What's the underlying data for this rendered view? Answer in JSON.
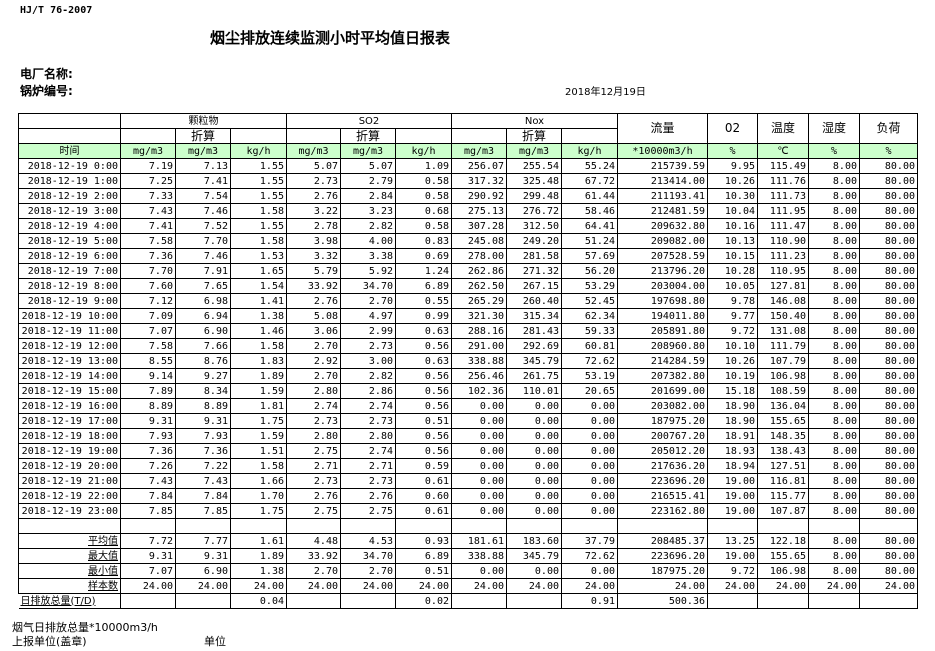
{
  "standard": "HJ/T  76-2007",
  "title": "烟尘排放连续监测小时平均值日报表",
  "plant_label": "电厂名称:",
  "boiler_label": "锅炉编号:",
  "date": "2018年12月19日",
  "header": {
    "groups": [
      "颗粒物",
      "SO2",
      "Nox"
    ],
    "converted": "折算",
    "flow": "流量",
    "o2": "02",
    "temp": "温度",
    "humidity": "湿度",
    "load": "负荷",
    "units": [
      "时间",
      "mg/m3",
      "mg/m3",
      "kg/h",
      "mg/m3",
      "mg/m3",
      "kg/h",
      "mg/m3",
      "mg/m3",
      "kg/h",
      "*10000m3/h",
      "%",
      "℃",
      "%",
      "%"
    ]
  },
  "unit_row_color": "#ccffcc",
  "rows": [
    [
      "2018-12-19 0:00",
      "7.19",
      "7.13",
      "1.55",
      "5.07",
      "5.07",
      "1.09",
      "256.07",
      "255.54",
      "55.24",
      "215739.59",
      "9.95",
      "115.49",
      "8.00",
      "80.00"
    ],
    [
      "2018-12-19 1:00",
      "7.25",
      "7.41",
      "1.55",
      "2.73",
      "2.79",
      "0.58",
      "317.32",
      "325.48",
      "67.72",
      "213414.00",
      "10.26",
      "111.76",
      "8.00",
      "80.00"
    ],
    [
      "2018-12-19 2:00",
      "7.33",
      "7.54",
      "1.55",
      "2.76",
      "2.84",
      "0.58",
      "290.92",
      "299.48",
      "61.44",
      "211193.41",
      "10.30",
      "111.73",
      "8.00",
      "80.00"
    ],
    [
      "2018-12-19 3:00",
      "7.43",
      "7.46",
      "1.58",
      "3.22",
      "3.23",
      "0.68",
      "275.13",
      "276.72",
      "58.46",
      "212481.59",
      "10.04",
      "111.95",
      "8.00",
      "80.00"
    ],
    [
      "2018-12-19 4:00",
      "7.41",
      "7.52",
      "1.55",
      "2.78",
      "2.82",
      "0.58",
      "307.28",
      "312.50",
      "64.41",
      "209632.80",
      "10.16",
      "111.47",
      "8.00",
      "80.00"
    ],
    [
      "2018-12-19 5:00",
      "7.58",
      "7.70",
      "1.58",
      "3.98",
      "4.00",
      "0.83",
      "245.08",
      "249.20",
      "51.24",
      "209082.00",
      "10.13",
      "110.90",
      "8.00",
      "80.00"
    ],
    [
      "2018-12-19 6:00",
      "7.36",
      "7.46",
      "1.53",
      "3.32",
      "3.38",
      "0.69",
      "278.00",
      "281.58",
      "57.69",
      "207528.59",
      "10.15",
      "111.23",
      "8.00",
      "80.00"
    ],
    [
      "2018-12-19 7:00",
      "7.70",
      "7.91",
      "1.65",
      "5.79",
      "5.92",
      "1.24",
      "262.86",
      "271.32",
      "56.20",
      "213796.20",
      "10.28",
      "110.95",
      "8.00",
      "80.00"
    ],
    [
      "2018-12-19 8:00",
      "7.60",
      "7.65",
      "1.54",
      "33.92",
      "34.70",
      "6.89",
      "262.50",
      "267.15",
      "53.29",
      "203004.00",
      "10.05",
      "127.81",
      "8.00",
      "80.00"
    ],
    [
      "2018-12-19 9:00",
      "7.12",
      "6.98",
      "1.41",
      "2.76",
      "2.70",
      "0.55",
      "265.29",
      "260.40",
      "52.45",
      "197698.80",
      "9.78",
      "146.08",
      "8.00",
      "80.00"
    ],
    [
      "2018-12-19 10:00",
      "7.09",
      "6.94",
      "1.38",
      "5.08",
      "4.97",
      "0.99",
      "321.30",
      "315.34",
      "62.34",
      "194011.80",
      "9.77",
      "150.40",
      "8.00",
      "80.00"
    ],
    [
      "2018-12-19 11:00",
      "7.07",
      "6.90",
      "1.46",
      "3.06",
      "2.99",
      "0.63",
      "288.16",
      "281.43",
      "59.33",
      "205891.80",
      "9.72",
      "131.08",
      "8.00",
      "80.00"
    ],
    [
      "2018-12-19 12:00",
      "7.58",
      "7.66",
      "1.58",
      "2.70",
      "2.73",
      "0.56",
      "291.00",
      "292.69",
      "60.81",
      "208960.80",
      "10.10",
      "111.79",
      "8.00",
      "80.00"
    ],
    [
      "2018-12-19 13:00",
      "8.55",
      "8.76",
      "1.83",
      "2.92",
      "3.00",
      "0.63",
      "338.88",
      "345.79",
      "72.62",
      "214284.59",
      "10.26",
      "107.79",
      "8.00",
      "80.00"
    ],
    [
      "2018-12-19 14:00",
      "9.14",
      "9.27",
      "1.89",
      "2.70",
      "2.82",
      "0.56",
      "256.46",
      "261.75",
      "53.19",
      "207382.80",
      "10.19",
      "106.98",
      "8.00",
      "80.00"
    ],
    [
      "2018-12-19 15:00",
      "7.89",
      "8.34",
      "1.59",
      "2.80",
      "2.86",
      "0.56",
      "102.36",
      "110.01",
      "20.65",
      "201699.00",
      "15.18",
      "108.59",
      "8.00",
      "80.00"
    ],
    [
      "2018-12-19 16:00",
      "8.89",
      "8.89",
      "1.81",
      "2.74",
      "2.74",
      "0.56",
      "0.00",
      "0.00",
      "0.00",
      "203082.00",
      "18.90",
      "136.04",
      "8.00",
      "80.00"
    ],
    [
      "2018-12-19 17:00",
      "9.31",
      "9.31",
      "1.75",
      "2.73",
      "2.73",
      "0.51",
      "0.00",
      "0.00",
      "0.00",
      "187975.20",
      "18.90",
      "155.65",
      "8.00",
      "80.00"
    ],
    [
      "2018-12-19 18:00",
      "7.93",
      "7.93",
      "1.59",
      "2.80",
      "2.80",
      "0.56",
      "0.00",
      "0.00",
      "0.00",
      "200767.20",
      "18.91",
      "148.35",
      "8.00",
      "80.00"
    ],
    [
      "2018-12-19 19:00",
      "7.36",
      "7.36",
      "1.51",
      "2.75",
      "2.74",
      "0.56",
      "0.00",
      "0.00",
      "0.00",
      "205012.20",
      "18.93",
      "138.43",
      "8.00",
      "80.00"
    ],
    [
      "2018-12-19 20:00",
      "7.26",
      "7.22",
      "1.58",
      "2.71",
      "2.71",
      "0.59",
      "0.00",
      "0.00",
      "0.00",
      "217636.20",
      "18.94",
      "127.51",
      "8.00",
      "80.00"
    ],
    [
      "2018-12-19 21:00",
      "7.43",
      "7.43",
      "1.66",
      "2.73",
      "2.73",
      "0.61",
      "0.00",
      "0.00",
      "0.00",
      "223696.20",
      "19.00",
      "116.81",
      "8.00",
      "80.00"
    ],
    [
      "2018-12-19 22:00",
      "7.84",
      "7.84",
      "1.70",
      "2.76",
      "2.76",
      "0.60",
      "0.00",
      "0.00",
      "0.00",
      "216515.41",
      "19.00",
      "115.77",
      "8.00",
      "80.00"
    ],
    [
      "2018-12-19 23:00",
      "7.85",
      "7.85",
      "1.75",
      "2.75",
      "2.75",
      "0.61",
      "0.00",
      "0.00",
      "0.00",
      "223162.80",
      "19.00",
      "107.87",
      "8.00",
      "80.00"
    ]
  ],
  "summary": [
    [
      "平均值",
      "7.72",
      "7.77",
      "1.61",
      "4.48",
      "4.53",
      "0.93",
      "181.61",
      "183.60",
      "37.79",
      "208485.37",
      "13.25",
      "122.18",
      "8.00",
      "80.00"
    ],
    [
      "最大值",
      "9.31",
      "9.31",
      "1.89",
      "33.92",
      "34.70",
      "6.89",
      "338.88",
      "345.79",
      "72.62",
      "223696.20",
      "19.00",
      "155.65",
      "8.00",
      "80.00"
    ],
    [
      "最小值",
      "7.07",
      "6.90",
      "1.38",
      "2.70",
      "2.70",
      "0.51",
      "0.00",
      "0.00",
      "0.00",
      "187975.20",
      "9.72",
      "106.98",
      "8.00",
      "80.00"
    ],
    [
      "样本数",
      "24.00",
      "24.00",
      "24.00",
      "24.00",
      "24.00",
      "24.00",
      "24.00",
      "24.00",
      "24.00",
      "24.00",
      "24.00",
      "24.00",
      "24.00",
      "24.00"
    ],
    [
      "日排放总量(T/D)",
      "",
      "",
      "0.04",
      "",
      "",
      "0.02",
      "",
      "",
      "0.91",
      "500.36",
      "",
      "",
      "",
      ""
    ]
  ],
  "notes": {
    "flue_gas_total": "烟气日排放总量*10000m3/h",
    "reporting_unit": "上报单位(盖章)",
    "unit": "单位"
  }
}
